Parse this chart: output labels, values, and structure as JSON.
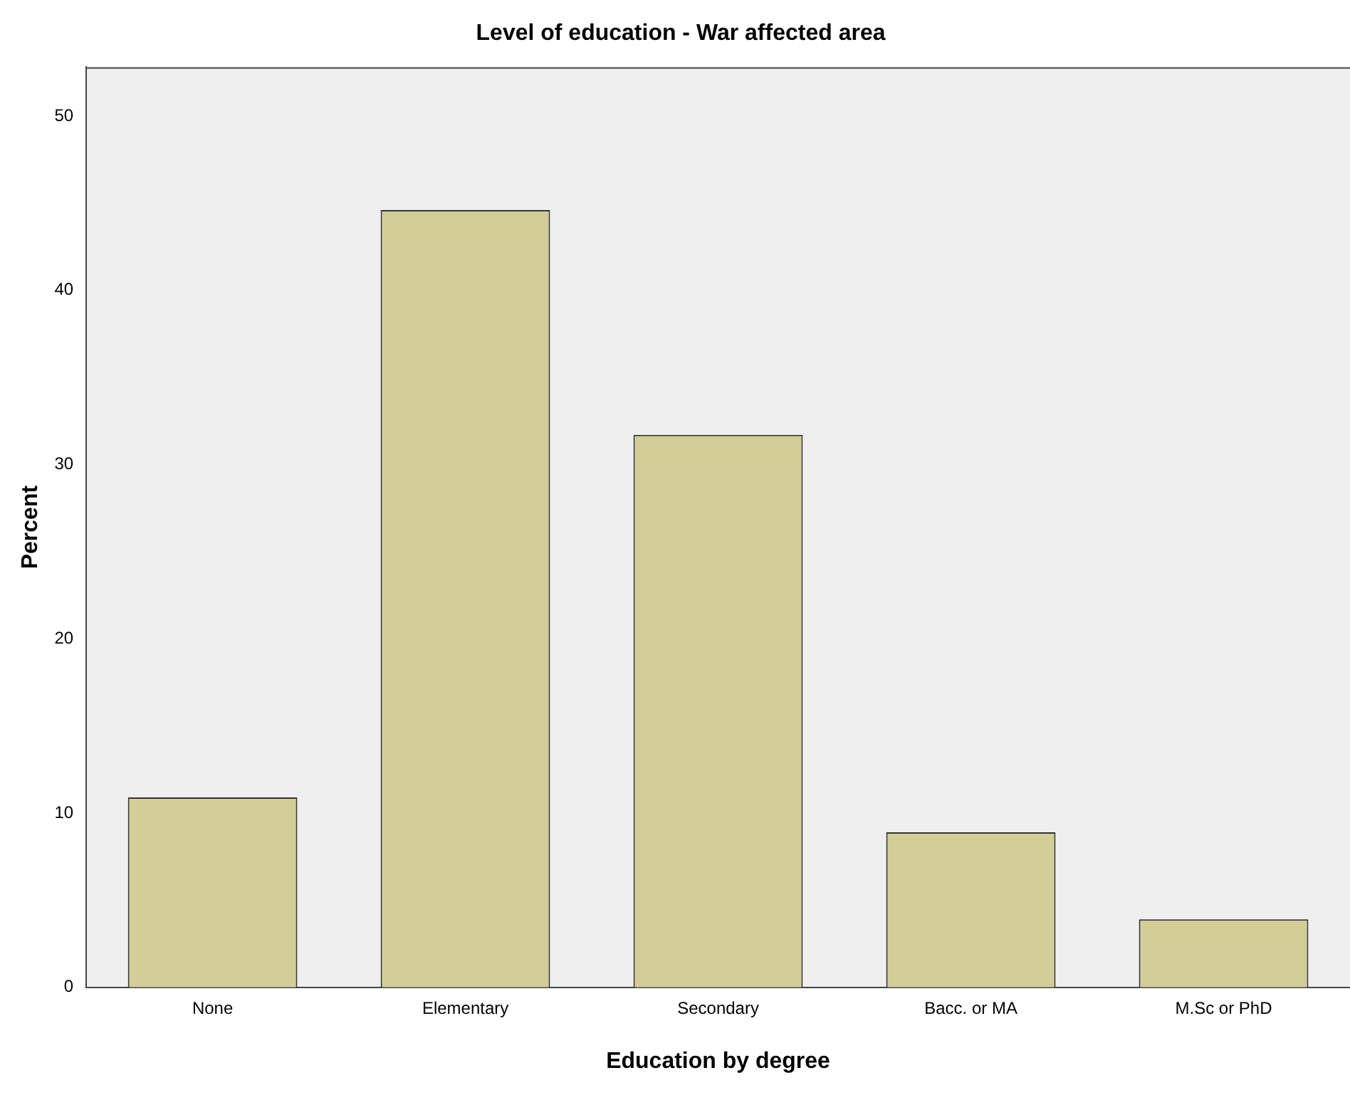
{
  "chart_data": {
    "type": "bar",
    "title": "Level of education - War affected area",
    "xlabel": "Education by degree",
    "ylabel": "Percent",
    "categories": [
      "None",
      "Elementary",
      "Secondary",
      "Bacc. or MA",
      "M.Sc or PhD"
    ],
    "values": [
      10.9,
      44.6,
      31.7,
      8.9,
      3.9
    ],
    "color": "#d3ce97",
    "ylim": [
      0,
      52.8
    ],
    "yticks": [
      0,
      10,
      20,
      30,
      40,
      50
    ],
    "grid": false,
    "legend": false
  }
}
